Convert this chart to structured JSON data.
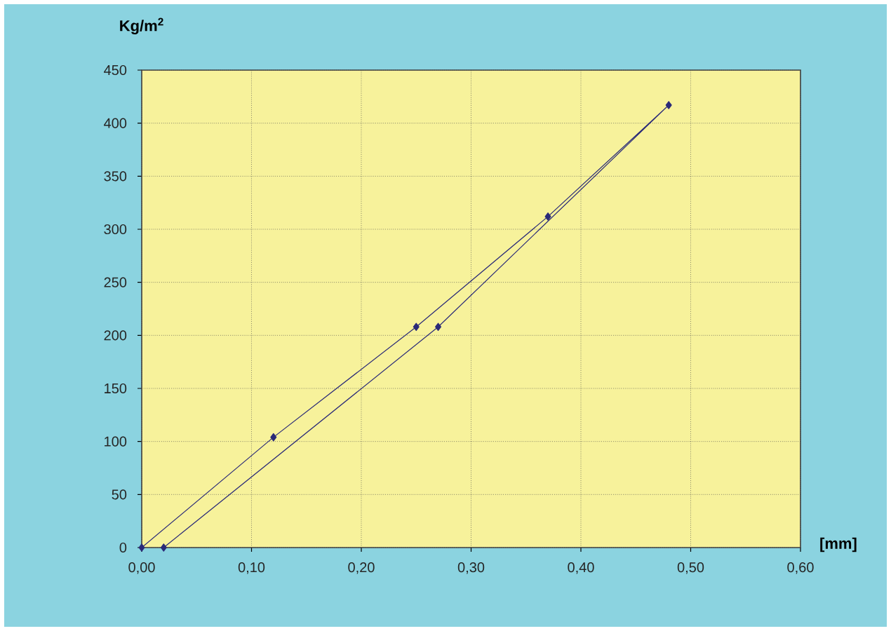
{
  "chart_data": {
    "type": "line",
    "ylabel": "Kg/m$^{2}$",
    "xlabel": "[mm]",
    "series": [
      {
        "color": "#2a2a78",
        "x": [
          0,
          0.12,
          0.25,
          0.37,
          0.48,
          0.27,
          0.02
        ],
        "values": [
          0,
          104,
          208,
          312,
          417,
          208,
          0
        ]
      }
    ],
    "xlim": [
      0,
      0.6
    ],
    "ylim": [
      0,
      450
    ],
    "xticks": [
      {
        "value": 0,
        "label": "0,00"
      },
      {
        "value": 0.1,
        "label": "0,10"
      },
      {
        "value": 0.2,
        "label": "0,20"
      },
      {
        "value": 0.3,
        "label": "0,30"
      },
      {
        "value": 0.4,
        "label": "0,40"
      },
      {
        "value": 0.5,
        "label": "0,50"
      },
      {
        "value": 0.6,
        "label": "0,60"
      }
    ],
    "yticks": [
      0,
      50,
      100,
      150,
      200,
      250,
      300,
      350,
      400,
      450
    ],
    "grid": true,
    "marker": "diamond",
    "line_style": "solid"
  }
}
